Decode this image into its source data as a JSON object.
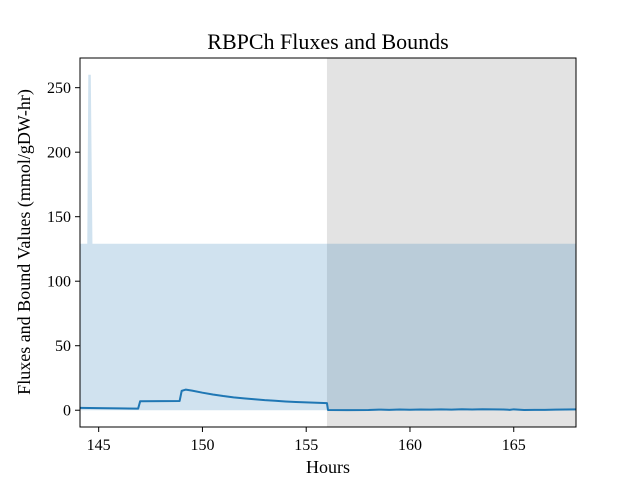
{
  "chart_data": {
    "type": "area",
    "title": "RBPCh Fluxes and Bounds",
    "xlabel": "Hours",
    "ylabel": "Fluxes and Bound Values (mmol/gDW-hr)",
    "xlim": [
      144.1,
      168.0
    ],
    "ylim": [
      -13,
      273
    ],
    "xticks": [
      145,
      150,
      155,
      160,
      165
    ],
    "yticks": [
      0,
      50,
      100,
      150,
      200,
      250
    ],
    "grid": false,
    "legend": "none",
    "shaded_region": {
      "x_start": 156.0,
      "x_end": 168.0,
      "color": "#e3e3e3"
    },
    "bound_band": {
      "color": "#cfe2ef",
      "lower": 0,
      "upper": [
        [
          144.1,
          129
        ],
        [
          144.45,
          129
        ],
        [
          144.5,
          260
        ],
        [
          144.62,
          260
        ],
        [
          144.7,
          129
        ],
        [
          168.0,
          129
        ]
      ]
    },
    "series": [
      {
        "color": "#1f77b4",
        "x": [
          144.1,
          145.0,
          146.0,
          146.9,
          147.0,
          148.0,
          148.9,
          149.0,
          149.2,
          149.5,
          150.0,
          150.5,
          151.0,
          151.5,
          152.0,
          152.5,
          153.0,
          153.5,
          154.0,
          154.5,
          155.0,
          155.5,
          156.0,
          156.05,
          157.0,
          158.0,
          158.5,
          159.0,
          159.5,
          160.0,
          160.5,
          161.0,
          161.5,
          162.0,
          162.5,
          163.0,
          163.5,
          164.0,
          164.5,
          164.8,
          165.0,
          165.5,
          166.0,
          166.5,
          167.0,
          167.5,
          168.0
        ],
        "y": [
          1.8,
          1.6,
          1.4,
          1.2,
          7.0,
          7.1,
          7.2,
          15.0,
          16.0,
          15.2,
          13.6,
          12.2,
          11.0,
          10.0,
          9.2,
          8.5,
          7.8,
          7.3,
          6.8,
          6.4,
          6.1,
          5.8,
          5.5,
          0.2,
          0.1,
          0.2,
          0.5,
          0.3,
          0.6,
          0.4,
          0.6,
          0.5,
          0.7,
          0.5,
          0.8,
          0.6,
          0.8,
          0.7,
          0.6,
          0.3,
          0.7,
          0.2,
          0.3,
          0.3,
          0.5,
          0.6,
          0.7
        ]
      }
    ]
  }
}
